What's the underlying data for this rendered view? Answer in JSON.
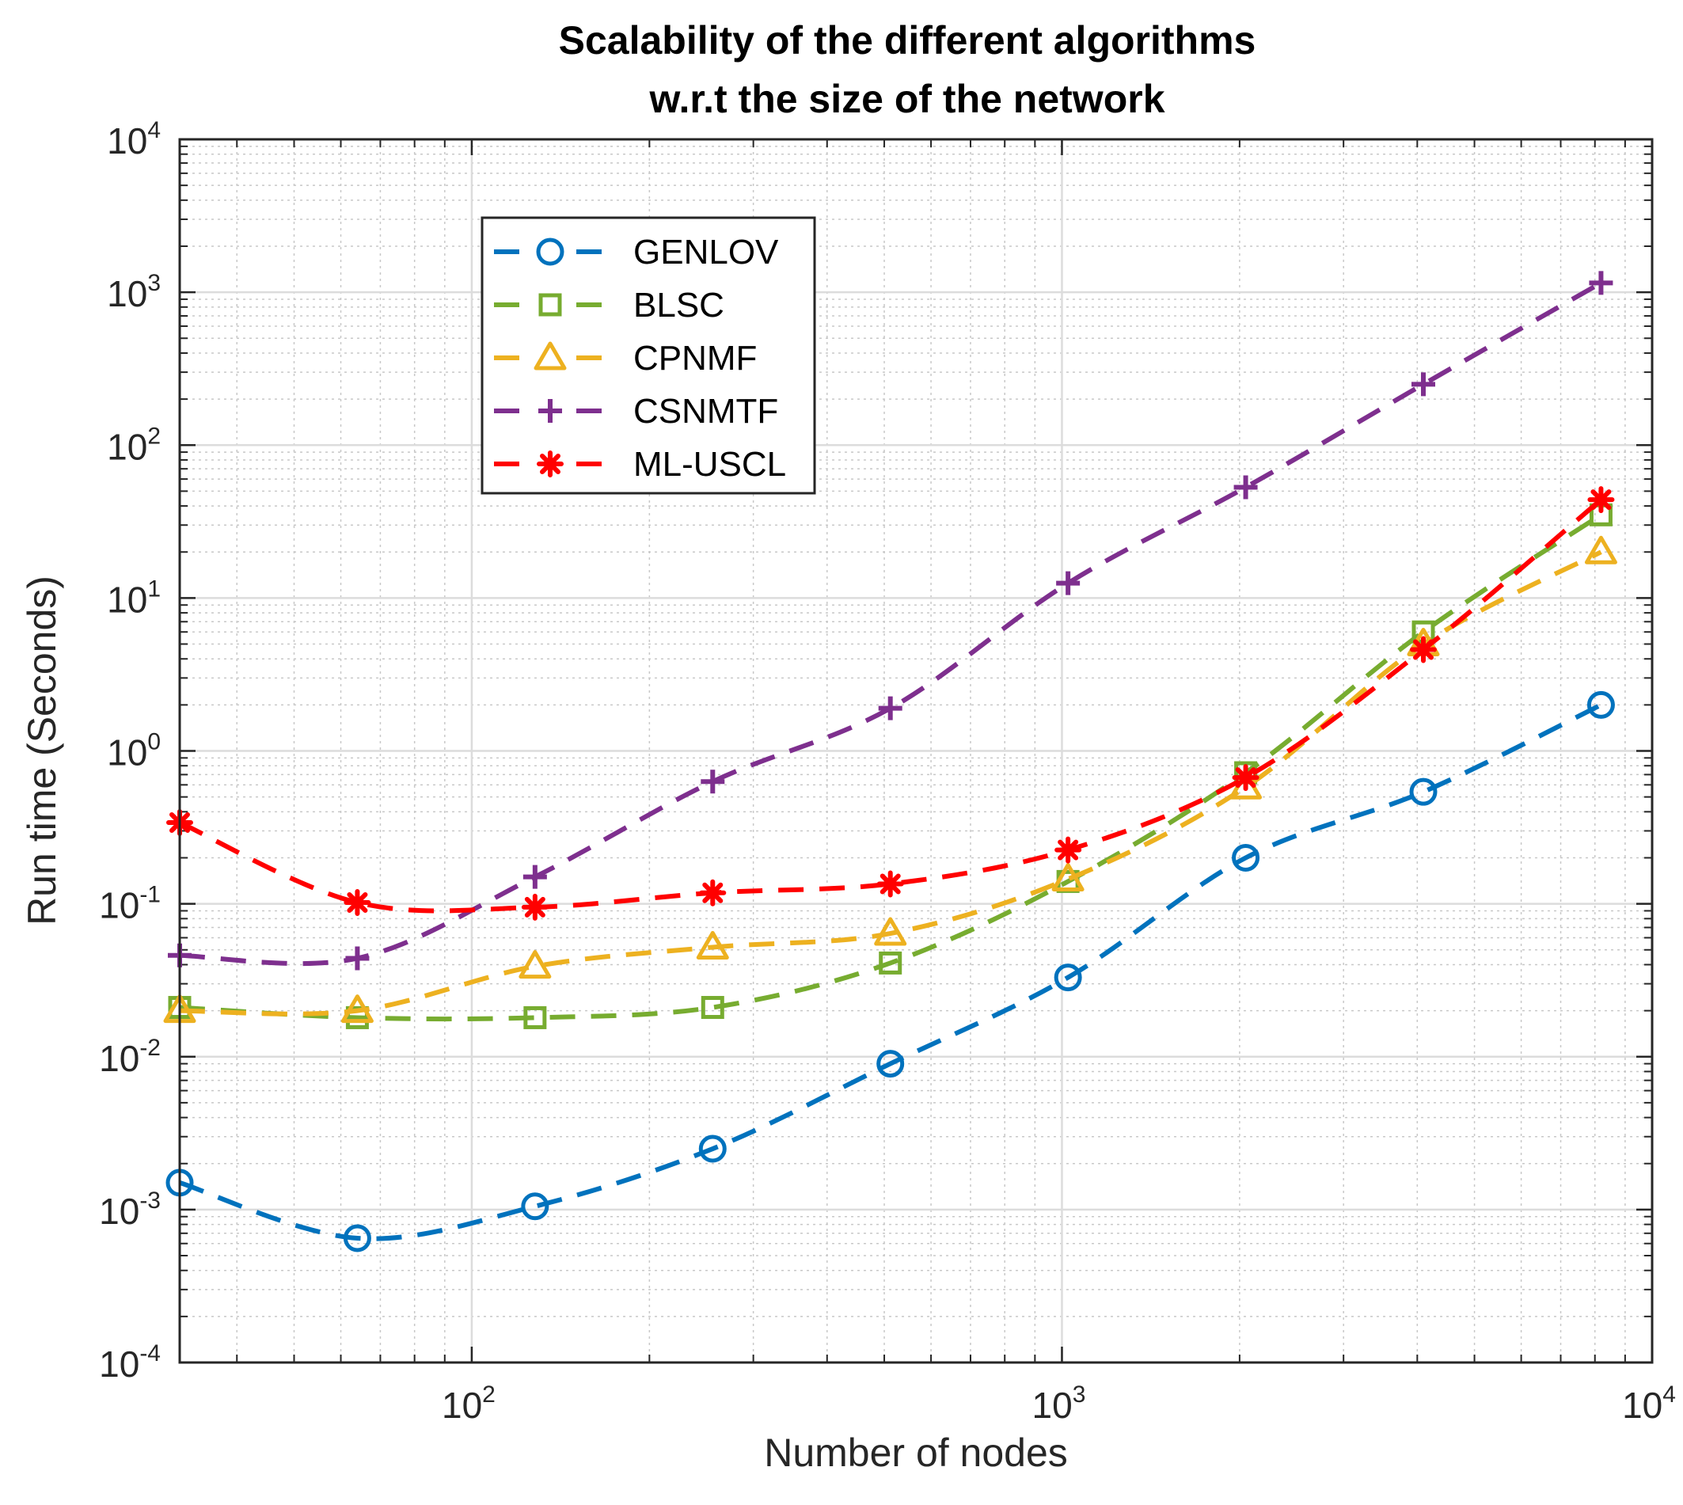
{
  "chart_data": {
    "type": "line",
    "title": [
      "Scalability of the different algorithms",
      "w.r.t the size of the network"
    ],
    "xlabel": "Number of nodes",
    "ylabel": "Run time (Seconds)",
    "xscale": "log",
    "yscale": "log",
    "xlim": [
      32,
      10000
    ],
    "ylim": [
      0.0001,
      10000
    ],
    "grid": true,
    "minor_grid": true,
    "legend_location": "top-left",
    "x": [
      32,
      64,
      128,
      256,
      512,
      1024,
      2048,
      4096,
      8192
    ],
    "xticks": [
      {
        "value": 100,
        "base": "10",
        "exp": "2"
      },
      {
        "value": 1000,
        "base": "10",
        "exp": "3"
      },
      {
        "value": 10000,
        "base": "10",
        "exp": "4"
      }
    ],
    "yticks": [
      {
        "value": 0.0001,
        "base": "10",
        "exp": "-4"
      },
      {
        "value": 0.001,
        "base": "10",
        "exp": "-3"
      },
      {
        "value": 0.01,
        "base": "10",
        "exp": "-2"
      },
      {
        "value": 0.1,
        "base": "10",
        "exp": "-1"
      },
      {
        "value": 1,
        "base": "10",
        "exp": "0"
      },
      {
        "value": 10,
        "base": "10",
        "exp": "1"
      },
      {
        "value": 100,
        "base": "10",
        "exp": "2"
      },
      {
        "value": 1000,
        "base": "10",
        "exp": "3"
      },
      {
        "value": 10000,
        "base": "10",
        "exp": "4"
      }
    ],
    "series": [
      {
        "name": "GENLOV",
        "color": "#0072BD",
        "marker": "circle",
        "values": [
          0.0015,
          0.00065,
          0.00105,
          0.0025,
          0.009,
          0.033,
          0.2,
          0.54,
          2.0
        ]
      },
      {
        "name": "BLSC",
        "color": "#77AC30",
        "marker": "square",
        "values": [
          0.021,
          0.018,
          0.018,
          0.021,
          0.041,
          0.14,
          0.72,
          6.0,
          35
        ]
      },
      {
        "name": "CPNMF",
        "color": "#EDB120",
        "marker": "triangle",
        "values": [
          0.02,
          0.02,
          0.039,
          0.052,
          0.064,
          0.145,
          0.58,
          5.0,
          20
        ]
      },
      {
        "name": "CSNMTF",
        "color": "#7E2F8E",
        "marker": "plus",
        "values": [
          0.046,
          0.044,
          0.15,
          0.63,
          1.9,
          12.5,
          53,
          250,
          1150
        ]
      },
      {
        "name": "ML-USCL",
        "color": "#FF0000",
        "marker": "asterisk",
        "values": [
          0.34,
          0.102,
          0.095,
          0.118,
          0.135,
          0.225,
          0.67,
          4.6,
          44
        ]
      }
    ]
  }
}
